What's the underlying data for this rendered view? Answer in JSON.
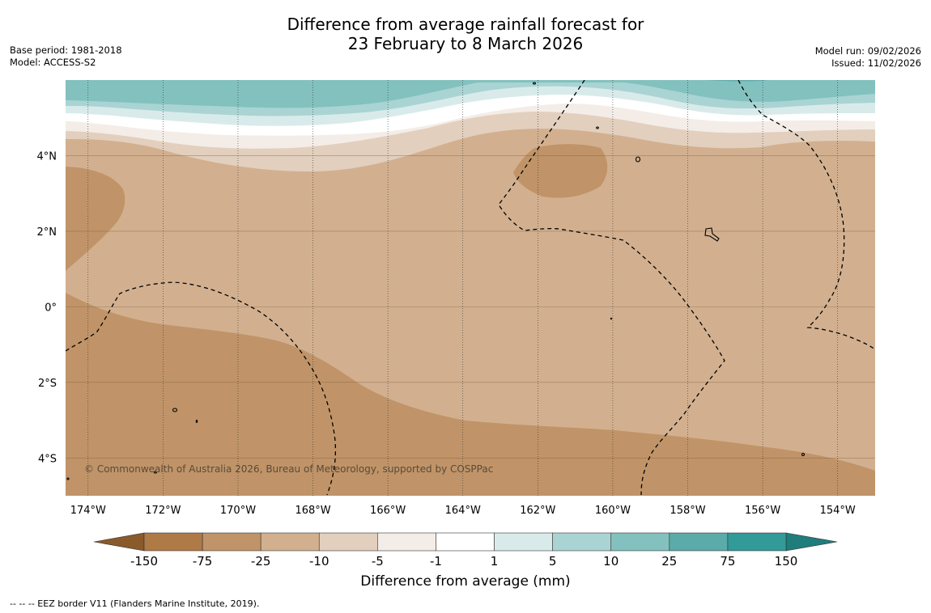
{
  "title": {
    "line1": "Difference from average rainfall forecast for",
    "line2": "23 February to 8 March 2026"
  },
  "meta_left": {
    "base_period": "Base period: 1981-2018",
    "model": "Model: ACCESS-S2"
  },
  "meta_right": {
    "model_run": "Model run: 09/02/2026",
    "issued": "Issued: 11/02/2026"
  },
  "map": {
    "lon_range": [
      -174.6,
      -153.0
    ],
    "lat_range": [
      -5.0,
      6.0
    ],
    "lat_ticks": [
      {
        "value": 4,
        "label": "4°N"
      },
      {
        "value": 2,
        "label": "2°N"
      },
      {
        "value": 0,
        "label": "0°"
      },
      {
        "value": -2,
        "label": "2°S"
      },
      {
        "value": -4,
        "label": "4°S"
      }
    ],
    "lon_ticks": [
      {
        "value": -174,
        "label": "174°W"
      },
      {
        "value": -172,
        "label": "172°W"
      },
      {
        "value": -170,
        "label": "170°W"
      },
      {
        "value": -168,
        "label": "168°W"
      },
      {
        "value": -166,
        "label": "166°W"
      },
      {
        "value": -164,
        "label": "164°W"
      },
      {
        "value": -162,
        "label": "162°W"
      },
      {
        "value": -160,
        "label": "160°W"
      },
      {
        "value": -158,
        "label": "158°W"
      },
      {
        "value": -156,
        "label": "156°W"
      },
      {
        "value": -154,
        "label": "154°W"
      }
    ],
    "copyright": "© Commonwealth of Australia 2026, Bureau of Meteorology, supported by COSPPac"
  },
  "colorbar": {
    "title": "Difference from average (mm)",
    "tick_labels": [
      "-150",
      "-75",
      "-25",
      "-10",
      "-5",
      "-1",
      "1",
      "5",
      "10",
      "25",
      "75",
      "150"
    ],
    "colors": [
      "#8a5a2b",
      "#b07a46",
      "#c09468",
      "#d2b08f",
      "#e3cfbe",
      "#f4ede7",
      "#ffffff",
      "#d8ebea",
      "#a9d4d3",
      "#82c1be",
      "#5aabaa",
      "#329a98",
      "#1f7d7c"
    ],
    "under_color": "#8a5a2b",
    "over_color": "#1f7d7c"
  },
  "footer": {
    "eez_legend": "--  --  -- EEZ border V11 (Flanders Marine Institute, 2019)."
  }
}
